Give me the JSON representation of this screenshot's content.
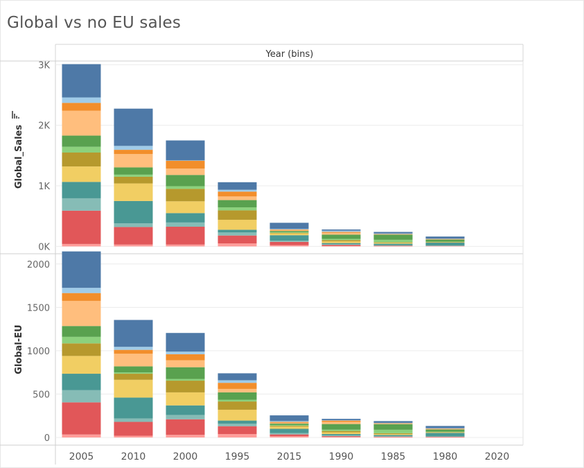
{
  "title": "Global vs no EU sales",
  "column_header": "Year (bins)",
  "colors": {
    "light_pink": "#ff9d9a",
    "red": "#e15759",
    "light_teal": "#86bcb6",
    "teal": "#499894",
    "yellow": "#f1ce63",
    "olive": "#b6992d",
    "light_green": "#8cd17d",
    "green": "#59a14f",
    "peach": "#ffbe7d",
    "orange": "#f28e2b",
    "light_blue": "#a0cbe8",
    "blue": "#4e79a7"
  },
  "chart_data": [
    {
      "type": "bar",
      "stacked": true,
      "ylabel": "Global_Sales",
      "yticks": [
        0,
        1000,
        2000,
        3000
      ],
      "ytick_labels": [
        "0K",
        "1K",
        "2K",
        "3K"
      ],
      "ylim": [
        -110,
        3050
      ],
      "categories": [
        "2005",
        "2010",
        "2000",
        "1995",
        "2015",
        "1990",
        "1985",
        "1980",
        "2020"
      ],
      "segments": [
        [
          "light_pink",
          40
        ],
        [
          "red",
          550
        ],
        [
          "light_teal",
          205
        ],
        [
          "teal",
          270
        ],
        [
          "yellow",
          255
        ],
        [
          "olive",
          230
        ],
        [
          "light_green",
          95
        ],
        [
          "green",
          185
        ],
        [
          "peach",
          410
        ],
        [
          "orange",
          130
        ],
        [
          "light_blue",
          90
        ],
        [
          "blue",
          550
        ]
      ],
      "series": [
        {
          "name": "light_pink",
          "values": [
            40,
            30,
            30,
            50,
            20,
            5,
            4,
            3,
            0
          ]
        },
        {
          "name": "red",
          "values": [
            550,
            290,
            295,
            130,
            55,
            20,
            7,
            5,
            0
          ]
        },
        {
          "name": "light_teal",
          "values": [
            205,
            60,
            70,
            50,
            20,
            10,
            8,
            5,
            0
          ]
        },
        {
          "name": "teal",
          "values": [
            270,
            370,
            155,
            45,
            90,
            20,
            25,
            50,
            0
          ]
        },
        {
          "name": "yellow",
          "values": [
            255,
            290,
            195,
            165,
            30,
            30,
            15,
            5,
            0
          ]
        },
        {
          "name": "olive",
          "values": [
            230,
            110,
            205,
            155,
            10,
            20,
            10,
            5,
            0
          ]
        },
        {
          "name": "light_green",
          "values": [
            95,
            35,
            45,
            50,
            10,
            20,
            40,
            5,
            0
          ]
        },
        {
          "name": "green",
          "values": [
            185,
            120,
            185,
            120,
            20,
            70,
            85,
            35,
            0
          ]
        },
        {
          "name": "peach",
          "values": [
            410,
            220,
            105,
            60,
            15,
            30,
            5,
            5,
            0
          ]
        },
        {
          "name": "orange",
          "values": [
            130,
            70,
            130,
            80,
            10,
            15,
            5,
            5,
            0
          ]
        },
        {
          "name": "light_blue",
          "values": [
            90,
            65,
            5,
            30,
            10,
            20,
            10,
            5,
            0
          ]
        },
        {
          "name": "blue",
          "values": [
            550,
            615,
            330,
            125,
            100,
            20,
            25,
            35,
            0
          ]
        }
      ]
    },
    {
      "type": "bar",
      "stacked": true,
      "ylabel": "Global-EU",
      "yticks": [
        0,
        500,
        1000,
        1500,
        2000
      ],
      "ytick_labels": [
        "0",
        "500",
        "1000",
        "1500",
        "2000"
      ],
      "ylim": [
        -80,
        2110
      ],
      "categories": [
        "2005",
        "2010",
        "2000",
        "1995",
        "2015",
        "1990",
        "1985",
        "1980",
        "2020"
      ],
      "series": [
        {
          "name": "light_pink",
          "values": [
            35,
            20,
            30,
            40,
            15,
            5,
            4,
            3,
            0
          ]
        },
        {
          "name": "red",
          "values": [
            370,
            160,
            180,
            90,
            20,
            10,
            5,
            5,
            0
          ]
        },
        {
          "name": "light_teal",
          "values": [
            140,
            40,
            50,
            30,
            15,
            10,
            5,
            5,
            0
          ]
        },
        {
          "name": "teal",
          "values": [
            190,
            240,
            110,
            35,
            50,
            15,
            15,
            40,
            0
          ]
        },
        {
          "name": "yellow",
          "values": [
            205,
            205,
            150,
            125,
            25,
            20,
            10,
            5,
            0
          ]
        },
        {
          "name": "olive",
          "values": [
            145,
            70,
            135,
            95,
            10,
            15,
            10,
            5,
            0
          ]
        },
        {
          "name": "light_green",
          "values": [
            75,
            15,
            20,
            20,
            10,
            15,
            40,
            5,
            0
          ]
        },
        {
          "name": "green",
          "values": [
            125,
            70,
            135,
            85,
            15,
            65,
            65,
            25,
            0
          ]
        },
        {
          "name": "peach",
          "values": [
            290,
            145,
            80,
            40,
            10,
            25,
            5,
            5,
            0
          ]
        },
        {
          "name": "orange",
          "values": [
            90,
            45,
            70,
            70,
            10,
            15,
            5,
            5,
            0
          ]
        },
        {
          "name": "light_blue",
          "values": [
            60,
            35,
            30,
            30,
            10,
            5,
            5,
            5,
            0
          ]
        },
        {
          "name": "blue",
          "values": [
            420,
            310,
            215,
            80,
            65,
            15,
            20,
            25,
            0
          ]
        }
      ]
    }
  ]
}
